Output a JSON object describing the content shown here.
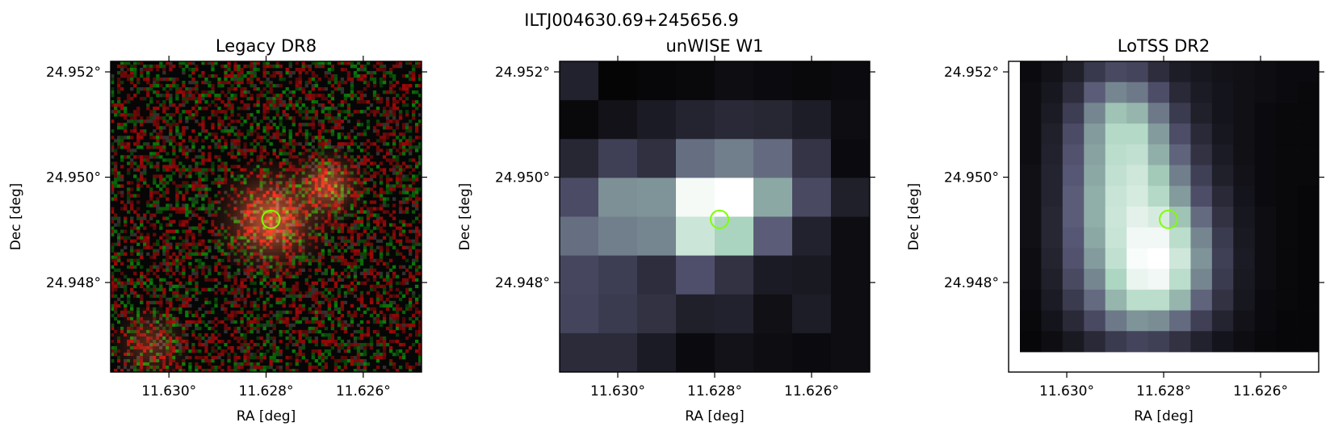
{
  "figure": {
    "suptitle": "ILTJ004630.69+245656.9",
    "colors": {
      "marker": "#7fff00",
      "frame": "#000000"
    }
  },
  "chart_data": [
    {
      "type": "heatmap",
      "title": "Legacy DR8",
      "xlabel": "RA [deg]",
      "ylabel": "Dec [deg]",
      "x_ticks": [
        "11.630°",
        "11.628°",
        "11.626°"
      ],
      "y_ticks": [
        "24.952°",
        "24.950°",
        "24.948°"
      ],
      "x_tick_values": [
        11.63,
        11.628,
        11.626
      ],
      "y_tick_values": [
        24.952,
        24.95,
        24.948
      ],
      "xlim": [
        11.6312,
        11.6248
      ],
      "ylim": [
        24.9463,
        24.9522
      ],
      "colormap": "rgb-composite",
      "marker": {
        "ra": 11.6279,
        "dec": 24.9492,
        "shape": "circle"
      }
    },
    {
      "type": "heatmap",
      "title": "unWISE W1",
      "xlabel": "RA [deg]",
      "ylabel": "Dec [deg]",
      "x_ticks": [
        "11.630°",
        "11.628°",
        "11.626°"
      ],
      "y_ticks": [
        "24.952°",
        "24.950°",
        "24.948°"
      ],
      "x_tick_values": [
        11.63,
        11.628,
        11.626
      ],
      "y_tick_values": [
        24.952,
        24.95,
        24.948
      ],
      "xlim": [
        11.6312,
        11.6248
      ],
      "ylim": [
        24.9463,
        24.9522
      ],
      "colormap": "bone",
      "marker": {
        "ra": 11.6279,
        "dec": 24.9492,
        "shape": "circle"
      },
      "grid": [
        [
          0.15,
          0.02,
          0.03,
          0.04,
          0.06,
          0.05,
          0.04,
          0.05
        ],
        [
          0.04,
          0.08,
          0.12,
          0.16,
          0.18,
          0.17,
          0.13,
          0.06
        ],
        [
          0.17,
          0.28,
          0.21,
          0.45,
          0.5,
          0.44,
          0.23,
          0.05
        ],
        [
          0.33,
          0.55,
          0.56,
          0.97,
          1.0,
          0.62,
          0.32,
          0.14
        ],
        [
          0.45,
          0.5,
          0.52,
          0.85,
          0.75,
          0.4,
          0.15,
          0.06
        ],
        [
          0.31,
          0.27,
          0.2,
          0.35,
          0.22,
          0.12,
          0.11,
          0.06
        ],
        [
          0.3,
          0.26,
          0.22,
          0.14,
          0.15,
          0.07,
          0.13,
          0.06
        ],
        [
          0.19,
          0.19,
          0.12,
          0.05,
          0.08,
          0.06,
          0.05,
          0.06
        ]
      ]
    },
    {
      "type": "heatmap",
      "title": "LoTSS DR2",
      "xlabel": "RA [deg]",
      "ylabel": "Dec [deg]",
      "x_ticks": [
        "11.630°",
        "11.628°",
        "11.626°"
      ],
      "y_ticks": [
        "24.952°",
        "24.950°",
        "24.948°"
      ],
      "x_tick_values": [
        11.63,
        11.628,
        11.626
      ],
      "y_tick_values": [
        24.952,
        24.95,
        24.948
      ],
      "xlim": [
        11.6312,
        11.6248
      ],
      "ylim": [
        24.9463,
        24.9522
      ],
      "colormap": "bone",
      "marker": {
        "ra": 11.6279,
        "dec": 24.9492,
        "shape": "circle"
      },
      "grid": [
        [
          0.05,
          0.08,
          0.14,
          0.25,
          0.32,
          0.3,
          0.2,
          0.13,
          0.1,
          0.08,
          0.07,
          0.06,
          0.05,
          0.05
        ],
        [
          0.06,
          0.1,
          0.2,
          0.4,
          0.52,
          0.48,
          0.34,
          0.18,
          0.12,
          0.09,
          0.07,
          0.06,
          0.05,
          0.04
        ],
        [
          0.06,
          0.12,
          0.27,
          0.52,
          0.7,
          0.66,
          0.48,
          0.26,
          0.14,
          0.09,
          0.07,
          0.05,
          0.04,
          0.04
        ],
        [
          0.06,
          0.14,
          0.33,
          0.58,
          0.78,
          0.78,
          0.58,
          0.34,
          0.18,
          0.1,
          0.07,
          0.05,
          0.04,
          0.04
        ],
        [
          0.06,
          0.15,
          0.36,
          0.6,
          0.8,
          0.82,
          0.64,
          0.42,
          0.22,
          0.12,
          0.07,
          0.05,
          0.04,
          0.04
        ],
        [
          0.07,
          0.16,
          0.38,
          0.62,
          0.82,
          0.86,
          0.72,
          0.5,
          0.28,
          0.14,
          0.08,
          0.05,
          0.04,
          0.04
        ],
        [
          0.07,
          0.16,
          0.4,
          0.64,
          0.84,
          0.88,
          0.78,
          0.58,
          0.34,
          0.18,
          0.09,
          0.05,
          0.04,
          0.03
        ],
        [
          0.07,
          0.17,
          0.4,
          0.64,
          0.85,
          0.92,
          0.88,
          0.7,
          0.44,
          0.22,
          0.1,
          0.06,
          0.04,
          0.03
        ],
        [
          0.07,
          0.17,
          0.38,
          0.62,
          0.84,
          0.96,
          0.96,
          0.8,
          0.52,
          0.26,
          0.11,
          0.06,
          0.04,
          0.03
        ],
        [
          0.06,
          0.16,
          0.36,
          0.58,
          0.82,
          0.98,
          1.0,
          0.86,
          0.56,
          0.28,
          0.12,
          0.06,
          0.04,
          0.03
        ],
        [
          0.06,
          0.14,
          0.32,
          0.52,
          0.76,
          0.94,
          0.96,
          0.8,
          0.52,
          0.26,
          0.11,
          0.06,
          0.04,
          0.03
        ],
        [
          0.05,
          0.12,
          0.26,
          0.44,
          0.66,
          0.8,
          0.8,
          0.66,
          0.42,
          0.22,
          0.1,
          0.05,
          0.04,
          0.03
        ],
        [
          0.04,
          0.09,
          0.18,
          0.32,
          0.48,
          0.56,
          0.54,
          0.44,
          0.28,
          0.16,
          0.08,
          0.05,
          0.03,
          0.03
        ],
        [
          0.03,
          0.06,
          0.11,
          0.18,
          0.26,
          0.3,
          0.28,
          0.22,
          0.15,
          0.09,
          0.06,
          0.04,
          0.03,
          0.03
        ]
      ]
    }
  ]
}
